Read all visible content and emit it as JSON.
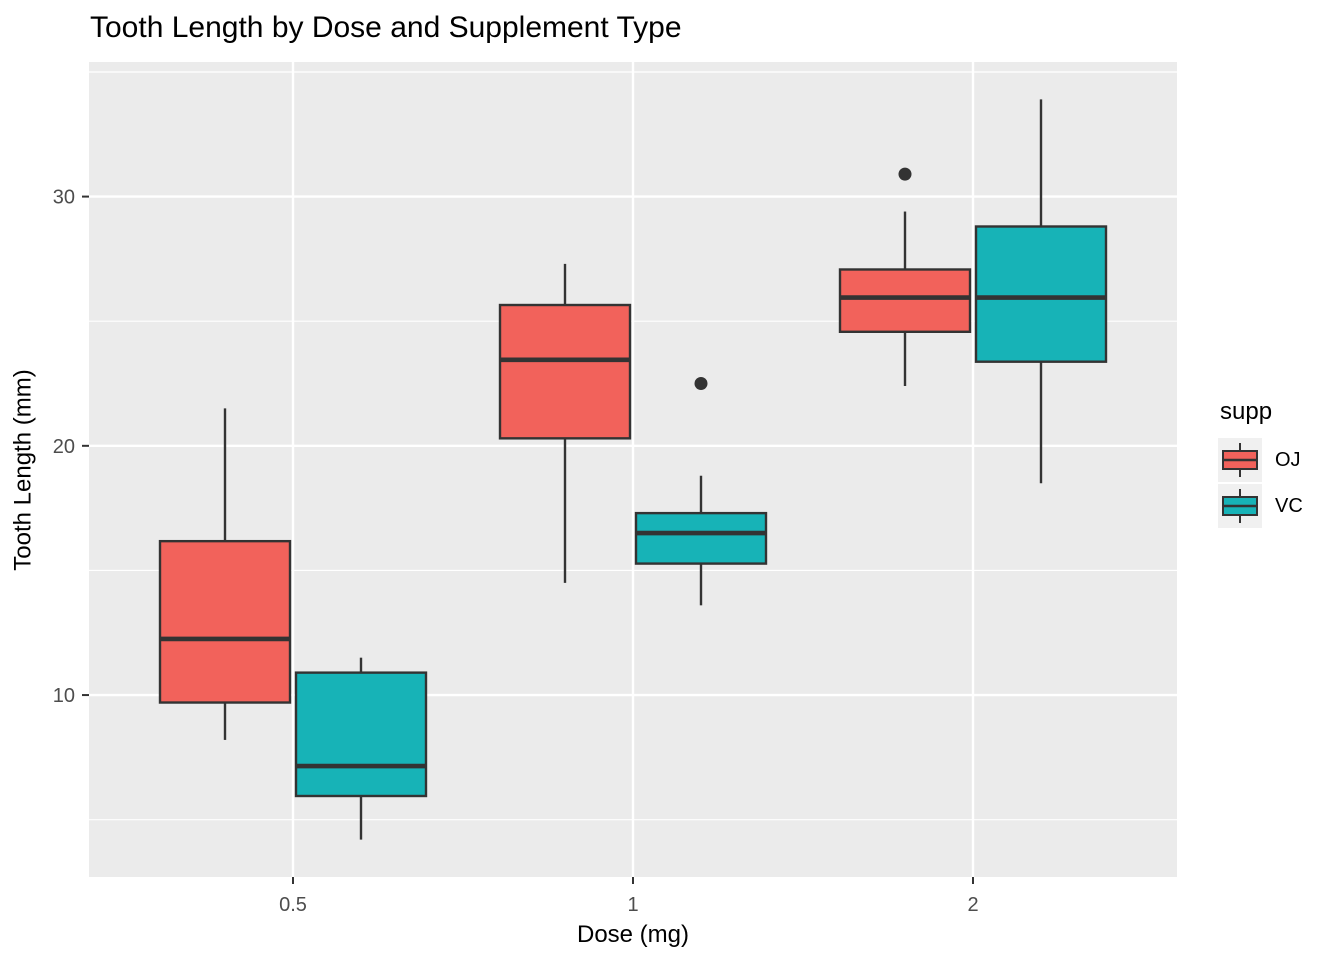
{
  "title": "Tooth Length by Dose and Supplement Type",
  "style": {
    "background": "#FFFFFF",
    "panel_background": "#EBEBEB",
    "grid_color": "#FFFFFF",
    "line_color": "#333333",
    "tick_label_color": "#4D4D4D",
    "title_color": "#000000",
    "legend_key_background": "#F0F0F0"
  },
  "chart_data": {
    "type": "boxplot",
    "title": "Tooth Length by Dose and Supplement Type",
    "xlabel": "Dose (mg)",
    "ylabel": "Tooth Length (mm)",
    "categories": [
      "0.5",
      "1",
      "2"
    ],
    "y_ticks": [
      10,
      20,
      30
    ],
    "y_minor_ticks": [
      5,
      15,
      25,
      35
    ],
    "ylim": [
      2.7,
      35.4
    ],
    "grid": true,
    "legend_position": "right",
    "legend": {
      "title": "supp",
      "entries": [
        {
          "label": "OJ",
          "color": "#F2625B"
        },
        {
          "label": "VC",
          "color": "#17B3B7"
        }
      ]
    },
    "series": [
      {
        "name": "OJ",
        "color": "#F2625B",
        "boxes": [
          {
            "category": "0.5",
            "whisker_low": 8.2,
            "q1": 9.7,
            "median": 12.25,
            "q3": 16.175,
            "whisker_high": 21.5,
            "outliers": []
          },
          {
            "category": "1",
            "whisker_low": 14.5,
            "q1": 20.3,
            "median": 23.45,
            "q3": 25.65,
            "whisker_high": 27.3,
            "outliers": []
          },
          {
            "category": "2",
            "whisker_low": 22.4,
            "q1": 24.575,
            "median": 25.95,
            "q3": 27.075,
            "whisker_high": 29.4,
            "outliers": [
              30.9
            ]
          }
        ]
      },
      {
        "name": "VC",
        "color": "#17B3B7",
        "boxes": [
          {
            "category": "0.5",
            "whisker_low": 4.2,
            "q1": 5.95,
            "median": 7.15,
            "q3": 10.9,
            "whisker_high": 11.5,
            "outliers": []
          },
          {
            "category": "1",
            "whisker_low": 13.6,
            "q1": 15.275,
            "median": 16.5,
            "q3": 17.3,
            "whisker_high": 18.8,
            "outliers": [
              22.5
            ]
          },
          {
            "category": "2",
            "whisker_low": 18.5,
            "q1": 23.375,
            "median": 25.95,
            "q3": 28.8,
            "whisker_high": 33.9,
            "outliers": []
          }
        ]
      }
    ]
  }
}
